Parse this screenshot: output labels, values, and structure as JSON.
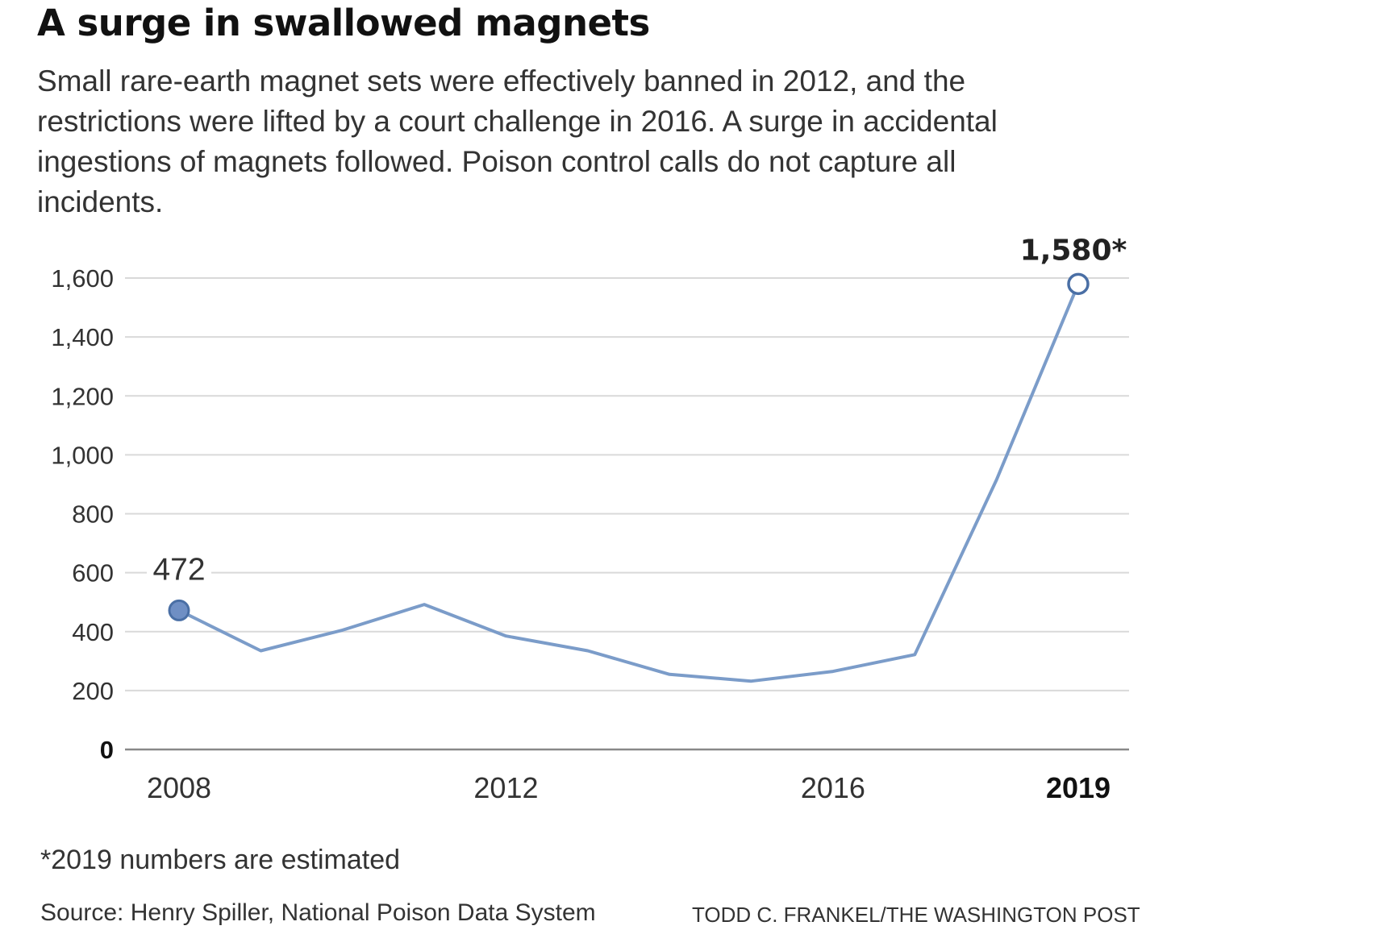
{
  "header": {
    "title": "A surge in swallowed magnets",
    "subtitle": "Small rare-earth magnet sets were effectively banned in 2012, and the restrictions were lifted by a court challenge in 2016. A surge in accidental ingestions of magnets followed. Poison control calls do not capture all incidents."
  },
  "chart_data": {
    "type": "line",
    "title": "A surge in swallowed magnets",
    "xlabel": "",
    "ylabel": "",
    "x": [
      2008,
      2009,
      2010,
      2011,
      2012,
      2013,
      2014,
      2015,
      2016,
      2017,
      2018,
      2019
    ],
    "series": [
      {
        "name": "",
        "values": [
          472,
          335,
          405,
          492,
          385,
          335,
          255,
          232,
          265,
          322,
          915,
          1580
        ]
      }
    ],
    "xlim": [
      2008,
      2019
    ],
    "ylim": [
      0,
      1600
    ],
    "x_ticks": [
      "2008",
      "2012",
      "2016",
      "2019"
    ],
    "y_ticks": [
      "0",
      "200",
      "400",
      "600",
      "800",
      "1,000",
      "1,200",
      "1,400",
      "1,600"
    ],
    "grid": true,
    "annotations": [
      {
        "x": 2008,
        "label": "472"
      },
      {
        "x": 2019,
        "label": "1,580*"
      }
    ],
    "colors": {
      "line": "#7b9cc9",
      "start_marker_fill": "#6f8fc4",
      "marker_stroke": "#4a6fa5",
      "end_marker_fill": "#ffffff",
      "grid": "#d9d9d9",
      "baseline": "#888888"
    }
  },
  "footer": {
    "footnote": "*2019 numbers are estimated",
    "source": "Source: Henry Spiller, National Poison Data System",
    "credit": "TODD C. FRANKEL/THE WASHINGTON POST"
  }
}
